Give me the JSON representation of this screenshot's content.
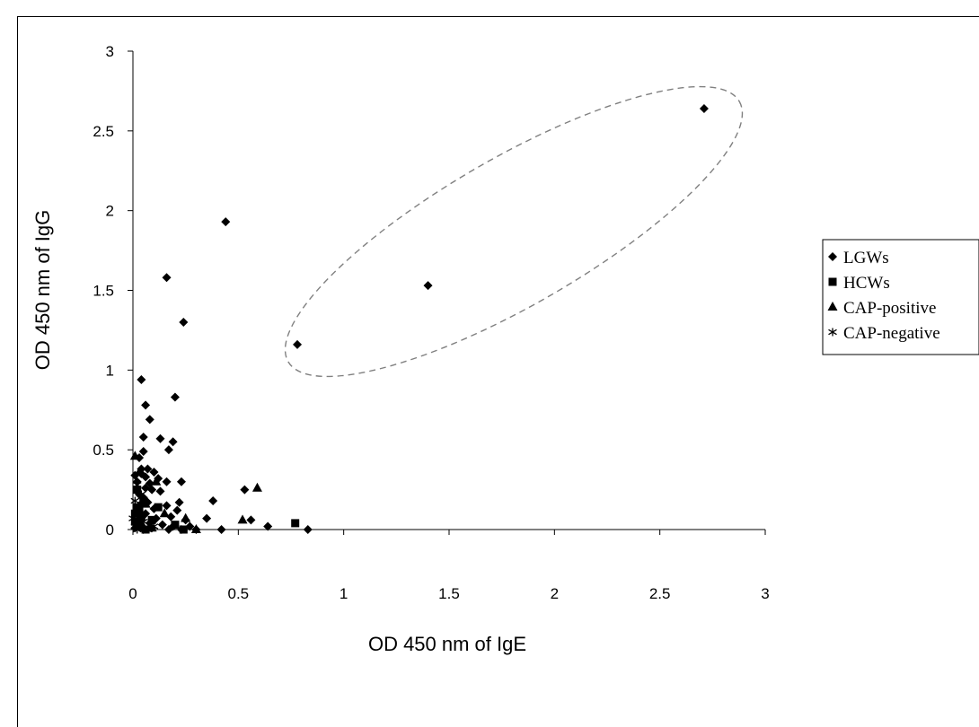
{
  "chart_data": {
    "type": "scatter",
    "xlabel": "OD 450 nm of IgE",
    "ylabel": "OD 450 nm of IgG",
    "xlim": [
      0,
      3
    ],
    "ylim": [
      0,
      3
    ],
    "xticks": [
      "0",
      "0.5",
      "1",
      "1.5",
      "2",
      "2.5",
      "3"
    ],
    "yticks": [
      "0",
      "0.5",
      "1",
      "1.5",
      "2",
      "2.5",
      "3"
    ],
    "grid": false,
    "legend_position": "right",
    "annotation": "dashed ellipse around high IgE/IgG responders",
    "series": [
      {
        "name": "LGWs",
        "marker": "diamond",
        "points": [
          [
            2.71,
            2.64
          ],
          [
            1.4,
            1.53
          ],
          [
            0.78,
            1.16
          ],
          [
            0.44,
            1.93
          ],
          [
            0.16,
            1.58
          ],
          [
            0.24,
            1.3
          ],
          [
            0.04,
            0.94
          ],
          [
            0.2,
            0.83
          ],
          [
            0.06,
            0.78
          ],
          [
            0.08,
            0.69
          ],
          [
            0.05,
            0.58
          ],
          [
            0.13,
            0.57
          ],
          [
            0.19,
            0.55
          ],
          [
            0.17,
            0.5
          ],
          [
            0.05,
            0.49
          ],
          [
            0.03,
            0.45
          ],
          [
            0.07,
            0.38
          ],
          [
            0.1,
            0.36
          ],
          [
            0.04,
            0.35
          ],
          [
            0.12,
            0.32
          ],
          [
            0.08,
            0.29
          ],
          [
            0.16,
            0.3
          ],
          [
            0.23,
            0.3
          ],
          [
            0.02,
            0.3
          ],
          [
            0.06,
            0.26
          ],
          [
            0.09,
            0.25
          ],
          [
            0.13,
            0.24
          ],
          [
            0.03,
            0.22
          ],
          [
            0.05,
            0.2
          ],
          [
            0.07,
            0.17
          ],
          [
            0.22,
            0.17
          ],
          [
            0.16,
            0.15
          ],
          [
            0.03,
            0.15
          ],
          [
            0.1,
            0.13
          ],
          [
            0.21,
            0.12
          ],
          [
            0.06,
            0.1
          ],
          [
            0.18,
            0.08
          ],
          [
            0.04,
            0.08
          ],
          [
            0.11,
            0.07
          ],
          [
            0.25,
            0.06
          ],
          [
            0.35,
            0.07
          ],
          [
            0.38,
            0.18
          ],
          [
            0.53,
            0.25
          ],
          [
            0.56,
            0.06
          ],
          [
            0.02,
            0.05
          ],
          [
            0.08,
            0.04
          ],
          [
            0.14,
            0.03
          ],
          [
            0.19,
            0.02
          ],
          [
            0.27,
            0.02
          ],
          [
            0.42,
            0.0
          ],
          [
            0.64,
            0.02
          ],
          [
            0.83,
            0.0
          ],
          [
            0.01,
            0.01
          ],
          [
            0.05,
            0.0
          ],
          [
            0.09,
            0.01
          ],
          [
            0.17,
            0.0
          ],
          [
            0.23,
            0.0
          ],
          [
            0.3,
            0.0
          ],
          [
            0.02,
            0.12
          ],
          [
            0.04,
            0.38
          ],
          [
            0.01,
            0.34
          ],
          [
            0.06,
            0.33
          ]
        ]
      },
      {
        "name": "HCWs",
        "marker": "square",
        "points": [
          [
            0.77,
            0.04
          ],
          [
            0.02,
            0.14
          ],
          [
            0.04,
            0.08
          ],
          [
            0.01,
            0.05
          ],
          [
            0.03,
            0.02
          ],
          [
            0.06,
            0.0
          ],
          [
            0.12,
            0.14
          ],
          [
            0.09,
            0.06
          ],
          [
            0.2,
            0.03
          ],
          [
            0.24,
            0.0
          ],
          [
            0.02,
            0.25
          ],
          [
            0.05,
            0.18
          ],
          [
            0.01,
            0.1
          ],
          [
            0.03,
            0.12
          ]
        ]
      },
      {
        "name": "CAP-positive",
        "marker": "triangle",
        "points": [
          [
            0.59,
            0.26
          ],
          [
            0.52,
            0.06
          ],
          [
            0.01,
            0.46
          ],
          [
            0.3,
            0.0
          ],
          [
            0.25,
            0.07
          ],
          [
            0.03,
            0.36
          ],
          [
            0.06,
            0.16
          ],
          [
            0.04,
            0.04
          ],
          [
            0.11,
            0.3
          ],
          [
            0.02,
            0.03
          ],
          [
            0.09,
            0.01
          ],
          [
            0.15,
            0.1
          ]
        ]
      },
      {
        "name": "CAP-negative",
        "marker": "asterisk",
        "points": [
          [
            0.01,
            0.02
          ],
          [
            0.02,
            0.0
          ],
          [
            0.0,
            0.07
          ],
          [
            0.03,
            0.1
          ],
          [
            0.05,
            0.05
          ],
          [
            0.07,
            0.0
          ],
          [
            0.01,
            0.18
          ],
          [
            0.04,
            0.22
          ],
          [
            0.1,
            0.02
          ],
          [
            0.02,
            0.28
          ]
        ]
      }
    ]
  }
}
